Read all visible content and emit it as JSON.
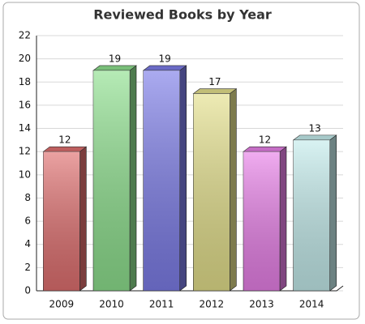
{
  "chart_data": {
    "type": "bar3d",
    "title": "Reviewed Books by Year",
    "categories": [
      "2009",
      "2010",
      "2011",
      "2012",
      "2013",
      "2014"
    ],
    "values": [
      12,
      19,
      19,
      17,
      12,
      13
    ],
    "colors": [
      "#e07070",
      "#8ee08e",
      "#7d7de8",
      "#e4e08c",
      "#e880e8",
      "#c4ecec"
    ],
    "ylim": [
      0,
      22
    ],
    "yticks": [
      0,
      2,
      4,
      6,
      8,
      10,
      12,
      14,
      16,
      18,
      20,
      22
    ],
    "grid": true
  }
}
